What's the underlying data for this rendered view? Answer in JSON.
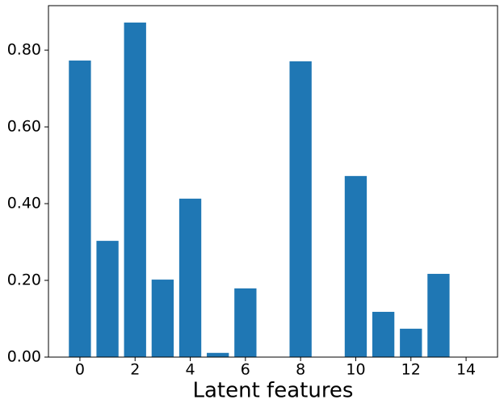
{
  "chart_data": {
    "type": "bar",
    "x_label": "Latent features",
    "x": [
      0,
      1,
      2,
      3,
      4,
      5,
      6,
      7,
      8,
      9,
      10,
      11,
      12,
      13,
      14
    ],
    "values": [
      0.773,
      0.303,
      0.872,
      0.202,
      0.413,
      0.011,
      0.179,
      0,
      0.771,
      0,
      0.472,
      0.118,
      0.074,
      0.217,
      0
    ],
    "color": "#1f77b4",
    "xlim": [
      -1.14,
      15.14
    ],
    "xticks": [
      0,
      2,
      4,
      6,
      8,
      10,
      12,
      14
    ],
    "ylim": [
      0,
      0.916
    ],
    "yticks": [
      {
        "value": 0,
        "label": "0.00"
      },
      {
        "value": 0.2,
        "label": "0.20"
      },
      {
        "value": 0.4,
        "label": "0.40"
      },
      {
        "value": 0.6,
        "label": "0.60"
      },
      {
        "value": 0.8,
        "label": "0.80"
      }
    ]
  }
}
